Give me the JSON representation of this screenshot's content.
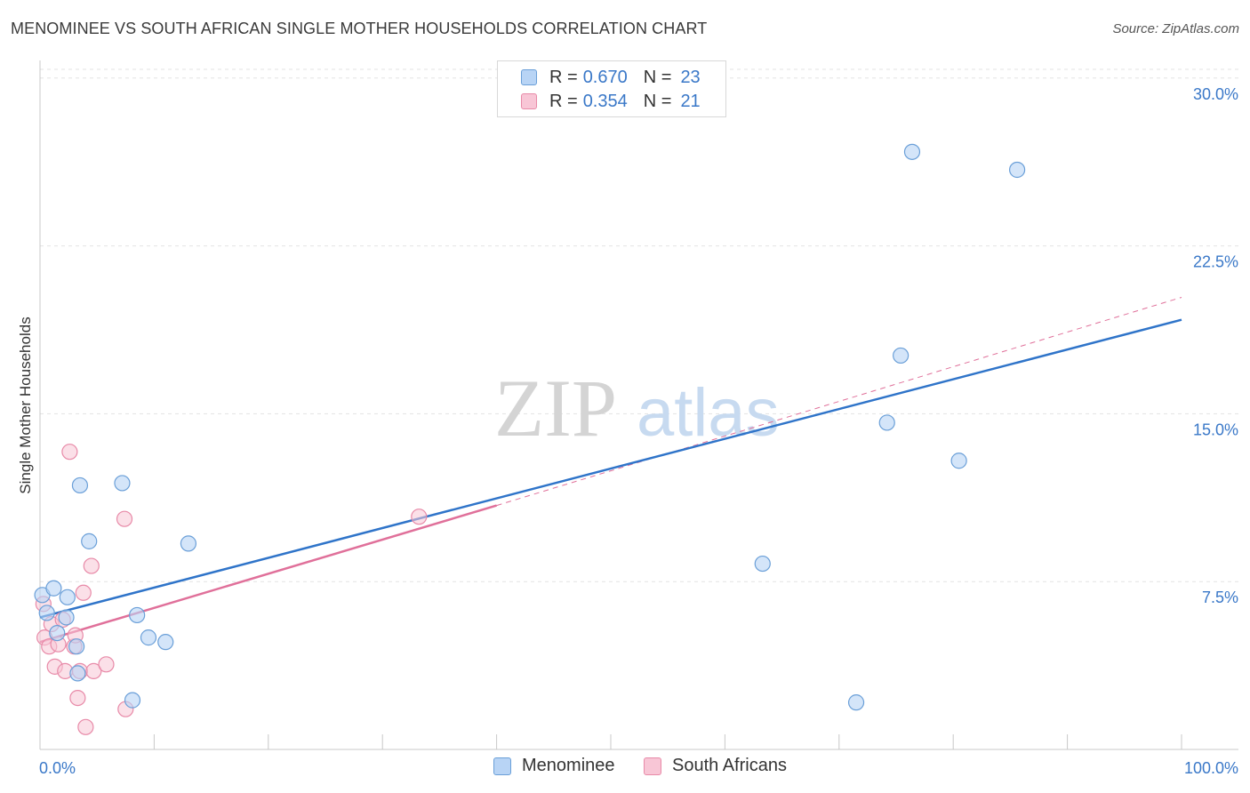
{
  "title": "MENOMINEE VS SOUTH AFRICAN SINGLE MOTHER HOUSEHOLDS CORRELATION CHART",
  "source": "Source: ZipAtlas.com",
  "watermark": {
    "zip": "ZIP",
    "atlas": "atlas"
  },
  "legend": {
    "rows": [
      {
        "r_label": "R = ",
        "r_value": "0.670",
        "n_label": "N = ",
        "n_value": "23"
      },
      {
        "r_label": "R = ",
        "r_value": "0.354",
        "n_label": "N = ",
        "n_value": "21"
      }
    ]
  },
  "bottom_legend": {
    "series1": "Menominee",
    "series2": "South Africans"
  },
  "colors": {
    "blue_fill": "#b8d4f5",
    "blue_stroke": "#6a9fd8",
    "blue_line": "#2f74c9",
    "pink_fill": "#f8c6d6",
    "pink_stroke": "#e88aa8",
    "pink_line": "#e0709a",
    "axis_text": "#3a78c8",
    "grid": "#e3e3e3"
  },
  "chart_data": {
    "type": "scatter",
    "title": "MENOMINEE VS SOUTH AFRICAN SINGLE MOTHER HOUSEHOLDS CORRELATION CHART",
    "xlabel": "",
    "ylabel": "Single Mother Households",
    "xlim": [
      0,
      100
    ],
    "ylim": [
      0,
      31.5
    ],
    "x_tick_labels": [
      "0.0%",
      "100.0%"
    ],
    "y_ticks": [
      7.5,
      15.0,
      22.5,
      30.0
    ],
    "y_tick_labels": [
      "7.5%",
      "15.0%",
      "22.5%",
      "30.0%"
    ],
    "series": [
      {
        "name": "Menominee",
        "r": 0.67,
        "n": 23,
        "points": [
          [
            0.2,
            6.9
          ],
          [
            0.6,
            6.1
          ],
          [
            1.2,
            7.2
          ],
          [
            1.5,
            5.2
          ],
          [
            2.3,
            5.9
          ],
          [
            2.4,
            6.8
          ],
          [
            3.2,
            4.6
          ],
          [
            3.3,
            3.4
          ],
          [
            3.5,
            11.8
          ],
          [
            4.3,
            9.3
          ],
          [
            7.2,
            11.9
          ],
          [
            8.1,
            2.2
          ],
          [
            8.5,
            6.0
          ],
          [
            9.5,
            5.0
          ],
          [
            11.0,
            4.8
          ],
          [
            13.0,
            9.2
          ],
          [
            63.3,
            8.3
          ],
          [
            71.5,
            2.1
          ],
          [
            74.2,
            14.6
          ],
          [
            75.4,
            17.6
          ],
          [
            76.4,
            26.7
          ],
          [
            80.5,
            12.9
          ],
          [
            85.6,
            25.9
          ]
        ],
        "trend": {
          "x": [
            0,
            100
          ],
          "y": [
            5.9,
            19.2
          ],
          "style": "solid"
        }
      },
      {
        "name": "South Africans",
        "r": 0.354,
        "n": 21,
        "points": [
          [
            0.3,
            6.5
          ],
          [
            0.4,
            5.0
          ],
          [
            0.8,
            4.6
          ],
          [
            1.0,
            5.6
          ],
          [
            1.3,
            3.7
          ],
          [
            1.6,
            4.7
          ],
          [
            2.0,
            5.8
          ],
          [
            2.2,
            3.5
          ],
          [
            2.6,
            13.3
          ],
          [
            3.0,
            4.6
          ],
          [
            3.1,
            5.1
          ],
          [
            3.3,
            2.3
          ],
          [
            3.5,
            3.5
          ],
          [
            3.8,
            7.0
          ],
          [
            4.0,
            1.0
          ],
          [
            4.5,
            8.2
          ],
          [
            4.7,
            3.5
          ],
          [
            5.8,
            3.8
          ],
          [
            7.4,
            10.3
          ],
          [
            7.5,
            1.8
          ],
          [
            33.2,
            10.4
          ]
        ],
        "trend": {
          "x": [
            0,
            40
          ],
          "y": [
            4.8,
            10.9
          ],
          "style": "solid"
        },
        "trend_extension": {
          "x": [
            40,
            100
          ],
          "y": [
            10.9,
            20.2
          ],
          "style": "dashed"
        }
      }
    ]
  }
}
